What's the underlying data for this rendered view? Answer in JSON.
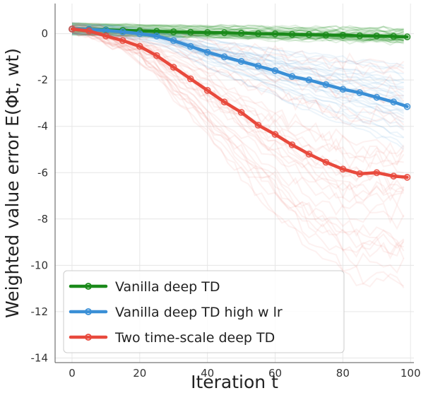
{
  "chart_data": {
    "type": "line",
    "xlabel": "Iteration t",
    "ylabel": "Weighted value error E(Φt, wt)",
    "xlim": [
      -5,
      101
    ],
    "ylim": [
      -14.2,
      1.3
    ],
    "x_ticks": [
      0,
      20,
      40,
      60,
      80,
      100
    ],
    "y_ticks": [
      0,
      -2,
      -4,
      -6,
      -8,
      -10,
      -12,
      -14
    ],
    "grid": true,
    "legend_position": "lower-left",
    "series": [
      {
        "name": "Vanilla deep TD",
        "color": "#1a8a1a",
        "marker_every": 5,
        "x": [
          0,
          5,
          10,
          15,
          20,
          25,
          30,
          35,
          40,
          45,
          50,
          55,
          60,
          65,
          70,
          75,
          80,
          85,
          90,
          95,
          99
        ],
        "y": [
          0.2,
          0.18,
          0.16,
          0.14,
          0.12,
          0.1,
          0.08,
          0.06,
          0.05,
          0.04,
          0.02,
          0.0,
          -0.01,
          -0.03,
          -0.04,
          -0.06,
          -0.07,
          -0.09,
          -0.1,
          -0.12,
          -0.14
        ]
      },
      {
        "name": "Vanilla deep TD high w lr",
        "color": "#3a8fd6",
        "marker_every": 5,
        "x": [
          0,
          5,
          10,
          15,
          20,
          25,
          30,
          35,
          40,
          45,
          50,
          55,
          60,
          65,
          70,
          75,
          80,
          85,
          90,
          95,
          99
        ],
        "y": [
          0.2,
          0.18,
          0.14,
          0.08,
          0.0,
          -0.1,
          -0.3,
          -0.55,
          -0.8,
          -1.0,
          -1.2,
          -1.4,
          -1.6,
          -1.85,
          -2.0,
          -2.2,
          -2.4,
          -2.55,
          -2.75,
          -2.95,
          -3.15
        ]
      },
      {
        "name": "Two time-scale deep TD",
        "color": "#e8493c",
        "marker_every": 5,
        "x": [
          0,
          5,
          10,
          15,
          20,
          25,
          30,
          35,
          40,
          45,
          50,
          55,
          60,
          65,
          70,
          75,
          80,
          85,
          90,
          95,
          99
        ],
        "y": [
          0.2,
          0.12,
          -0.1,
          -0.3,
          -0.55,
          -0.95,
          -1.45,
          -1.95,
          -2.45,
          -2.95,
          -3.4,
          -3.95,
          -4.35,
          -4.8,
          -5.2,
          -5.55,
          -5.85,
          -6.05,
          -6.0,
          -6.15,
          -6.2
        ]
      }
    ]
  },
  "legend": {
    "items": [
      {
        "label": "Vanilla deep TD"
      },
      {
        "label": "Vanilla deep TD high w lr"
      },
      {
        "label": "Two time-scale deep TD"
      }
    ]
  }
}
